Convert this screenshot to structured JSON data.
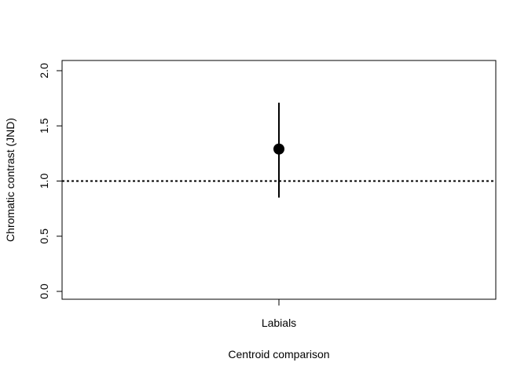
{
  "chart_data": {
    "type": "scatter",
    "title": "",
    "xlabel": "Centroid comparison",
    "ylabel": "Chromatic contrast (JND)",
    "categories": [
      "Labials"
    ],
    "ylim": [
      0,
      2
    ],
    "yticks": [
      "0.0",
      "0.5",
      "1.0",
      "1.5",
      "2.0"
    ],
    "series": [
      {
        "points": [
          {
            "category": "Labials",
            "y": 1.29,
            "lower": 0.85,
            "upper": 1.71
          }
        ]
      }
    ],
    "reference_line": {
      "y": 1.0,
      "style": "dotted"
    },
    "grid": false,
    "legend": "none"
  }
}
